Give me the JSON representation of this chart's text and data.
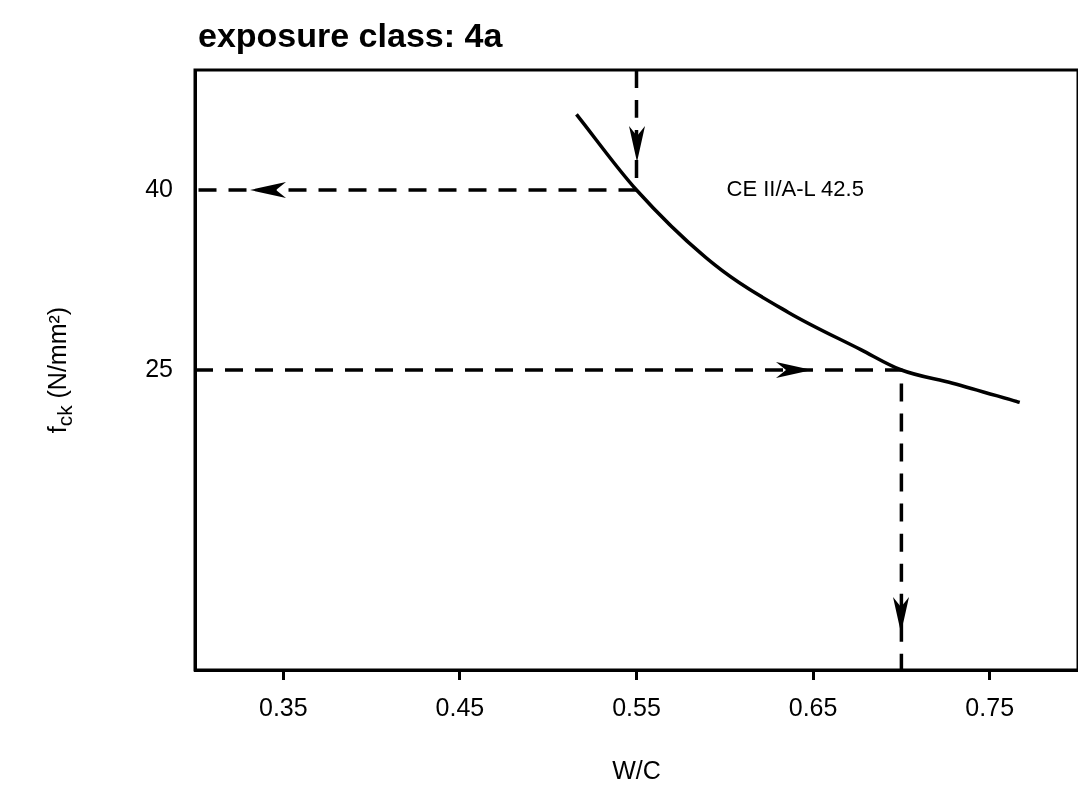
{
  "chart_data": {
    "type": "line",
    "title": "exposure class: 4a",
    "xlabel": "W/C",
    "ylabel": "f$_{ck}$ (N/mm²)",
    "xlim": [
      0.3,
      0.8
    ],
    "xticks": [
      0.35,
      0.45,
      0.55,
      0.65,
      0.75
    ],
    "ylim": [
      0,
      50
    ],
    "yticks": [
      25,
      40
    ],
    "grid": false,
    "legend": false,
    "marker": "none",
    "series": [
      {
        "name": "CE II/A-L 42.5",
        "color": "#000000",
        "line_style": "solid",
        "x": [
          0.516,
          0.55,
          0.594,
          0.636,
          0.677,
          0.7,
          0.729,
          0.767
        ],
        "values": [
          46.3,
          40,
          33.8,
          29.8,
          26.7,
          25,
          23.9,
          22.3
        ]
      },
      {
        "color": "#000000",
        "line_style": "dashed",
        "x": [
          0.55,
          0.55,
          0.3
        ],
        "values": [
          50,
          40,
          40
        ]
      },
      {
        "color": "#000000",
        "line_style": "dashed",
        "x": [
          0.3,
          0.7,
          0.7
        ],
        "values": [
          25,
          25,
          0
        ]
      }
    ]
  }
}
